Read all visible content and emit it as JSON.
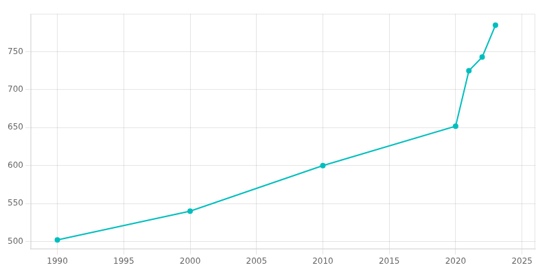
{
  "chart_data": {
    "type": "line",
    "x": [
      1990,
      2000,
      2010,
      2020,
      2021,
      2022,
      2023
    ],
    "values": [
      502,
      540,
      600,
      652,
      725,
      743,
      785
    ],
    "color": "#00BEBE",
    "marker": "circle",
    "xlim": [
      1988,
      2026
    ],
    "xticks": [
      1990,
      1995,
      2000,
      2005,
      2010,
      2015,
      2020,
      2025
    ],
    "ylim": [
      490,
      800
    ],
    "yticks": [
      500,
      550,
      600,
      650,
      700,
      750
    ],
    "grid": true
  }
}
